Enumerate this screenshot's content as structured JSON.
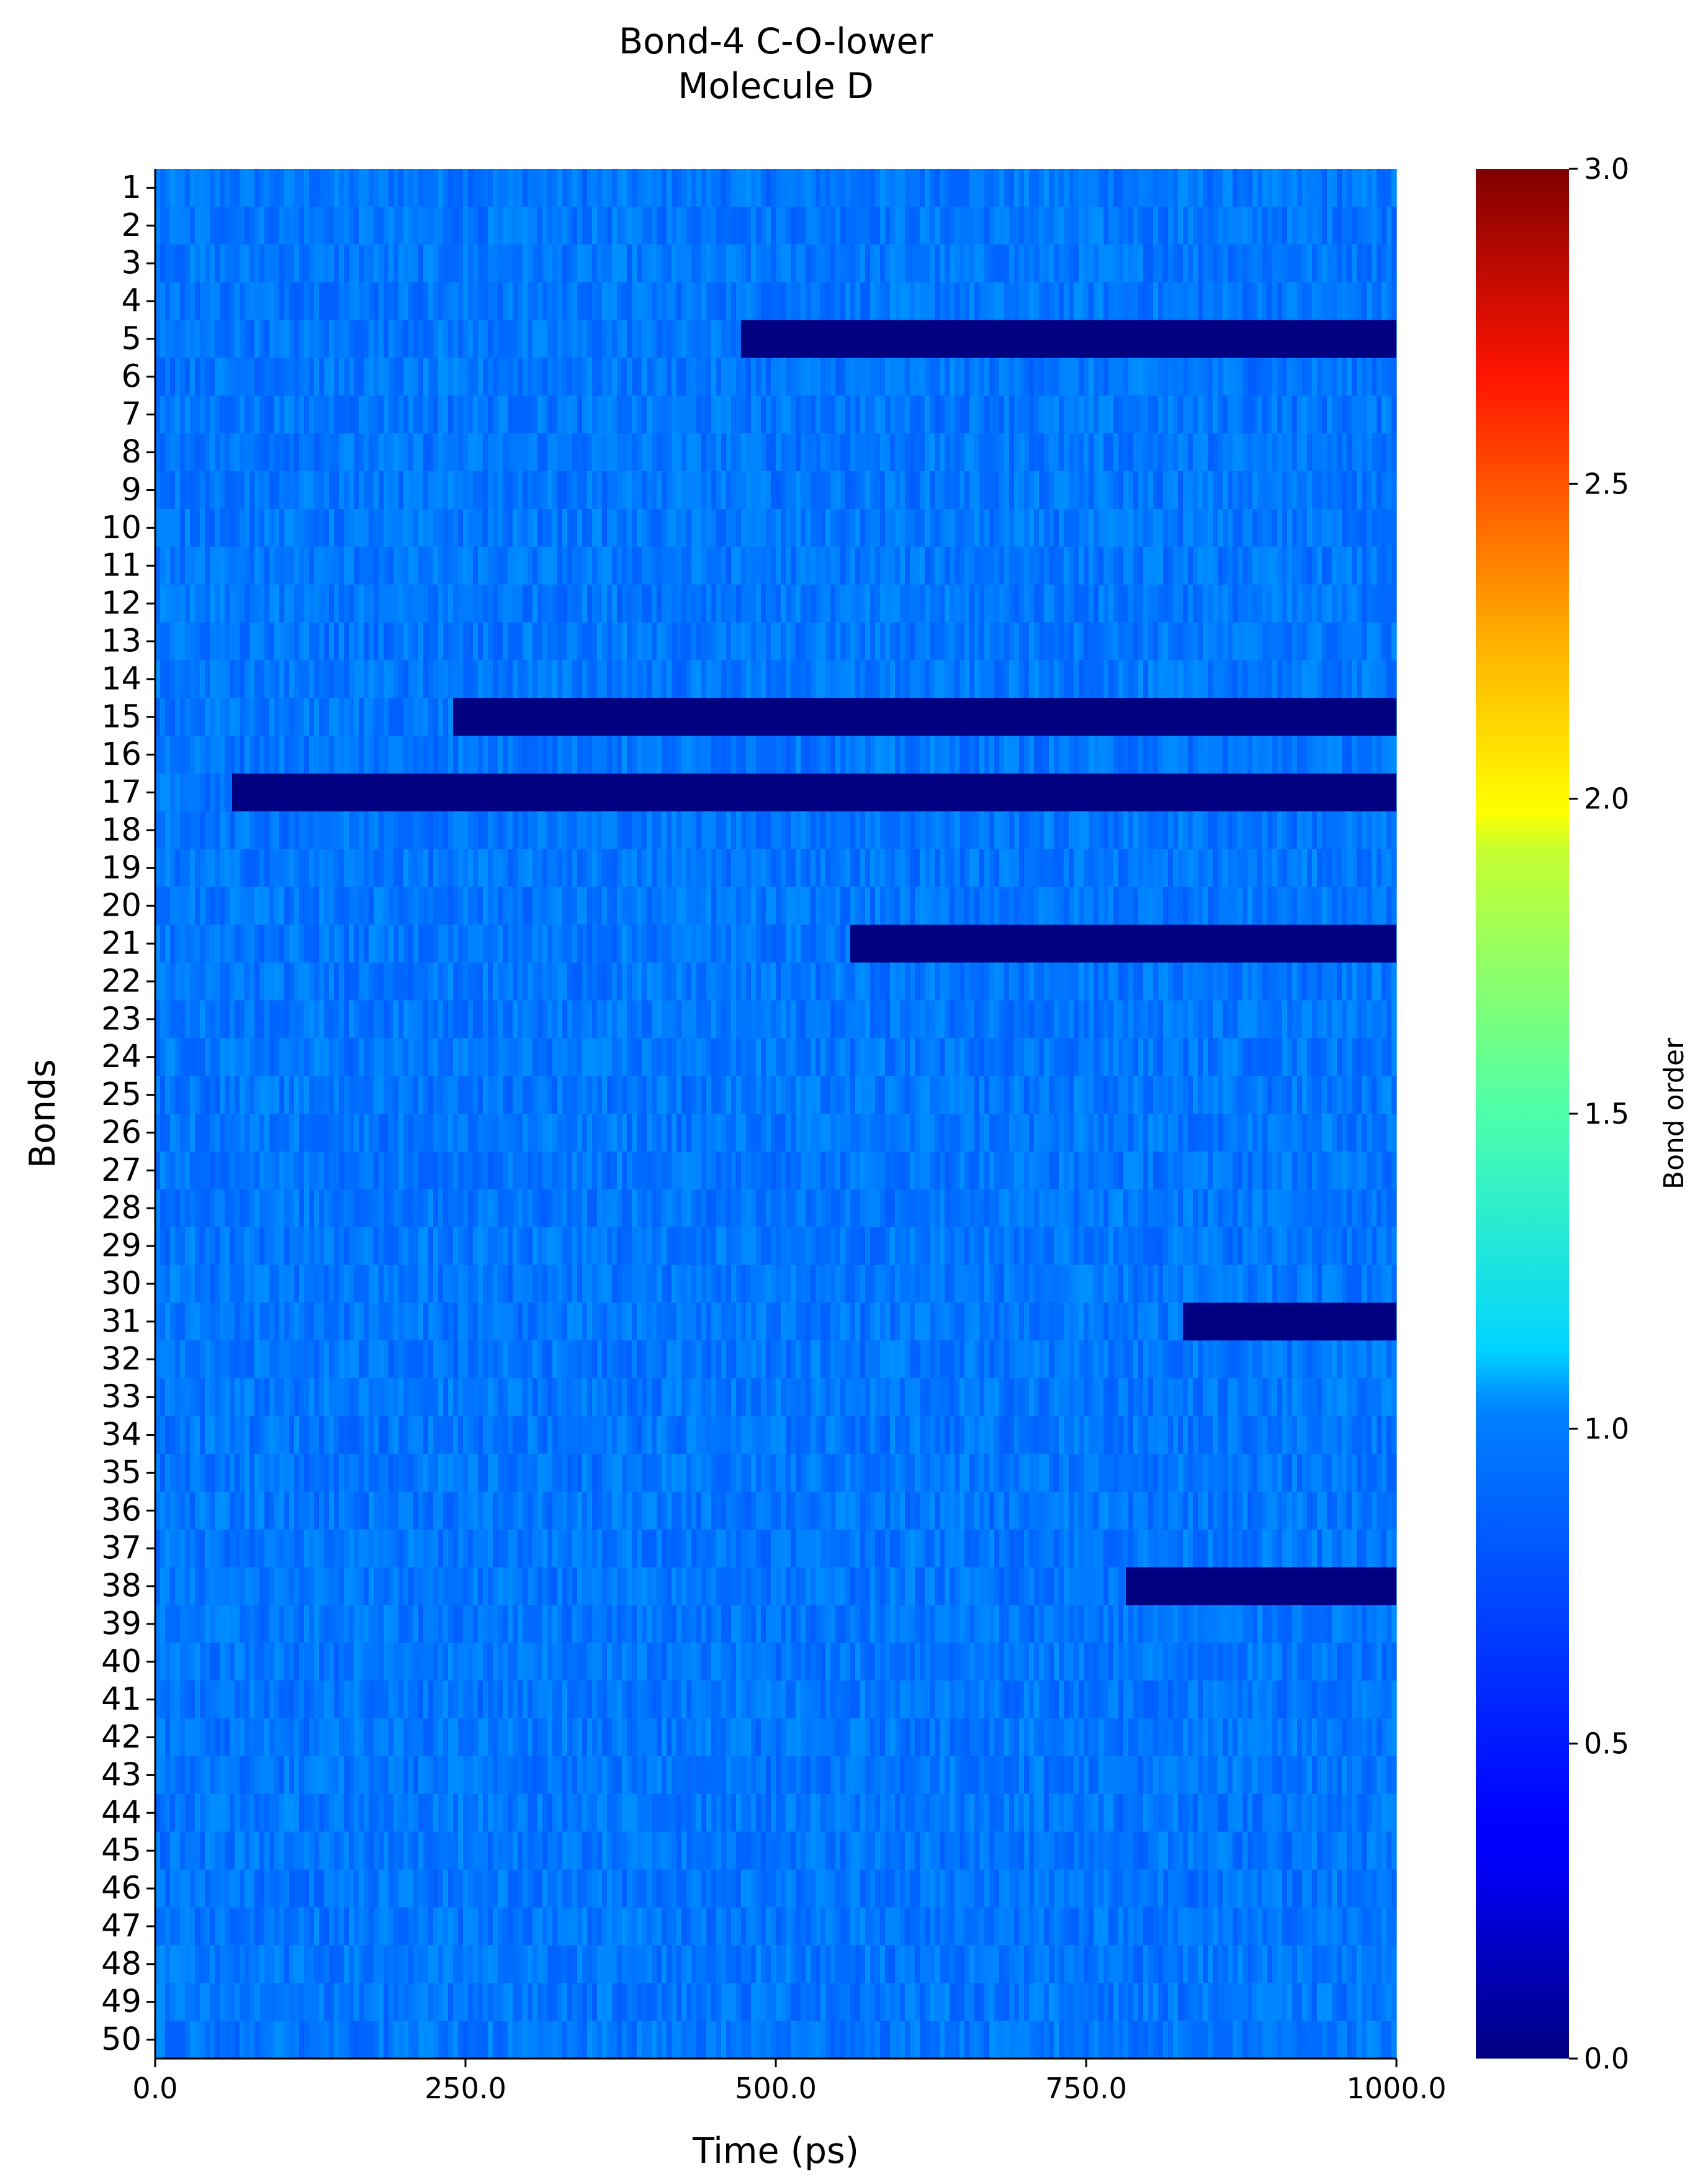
{
  "chart_data": {
    "type": "heatmap",
    "title": "Bond-4 C-O-lower",
    "subtitle": "Molecule D",
    "xlabel": "Time (ps)",
    "ylabel": "Bonds",
    "xlim": [
      0,
      1000
    ],
    "x_ticks": [
      "0.0",
      "250.0",
      "500.0",
      "750.0",
      "1000.0"
    ],
    "y_labels": [
      "1",
      "2",
      "3",
      "4",
      "5",
      "6",
      "7",
      "8",
      "9",
      "10",
      "11",
      "12",
      "13",
      "14",
      "15",
      "16",
      "17",
      "18",
      "19",
      "20",
      "21",
      "22",
      "23",
      "24",
      "25",
      "26",
      "27",
      "28",
      "29",
      "30",
      "31",
      "32",
      "33",
      "34",
      "35",
      "36",
      "37",
      "38",
      "39",
      "40",
      "41",
      "42",
      "43",
      "44",
      "45",
      "46",
      "47",
      "48",
      "49",
      "50"
    ],
    "colorbar": {
      "label": "Bond order",
      "range": [
        0,
        3
      ],
      "ticks": [
        "0.0",
        "0.5",
        "1.0",
        "1.5",
        "2.0",
        "2.5",
        "3.0"
      ],
      "colormap": "jet"
    },
    "baseline_value_range": [
      0.65,
      0.8
    ],
    "broken_bonds": [
      {
        "bond": "5",
        "from_ps": 472,
        "to_ps": 1000,
        "value": 0.0
      },
      {
        "bond": "15",
        "from_ps": 240,
        "to_ps": 1000,
        "value": 0.0
      },
      {
        "bond": "17",
        "from_ps": 62,
        "to_ps": 1000,
        "value": 0.0
      },
      {
        "bond": "21",
        "from_ps": 560,
        "to_ps": 1000,
        "value": 0.0
      },
      {
        "bond": "31",
        "from_ps": 828,
        "to_ps": 1000,
        "value": 0.0
      },
      {
        "bond": "38",
        "from_ps": 782,
        "to_ps": 1000,
        "value": 0.0
      }
    ]
  }
}
